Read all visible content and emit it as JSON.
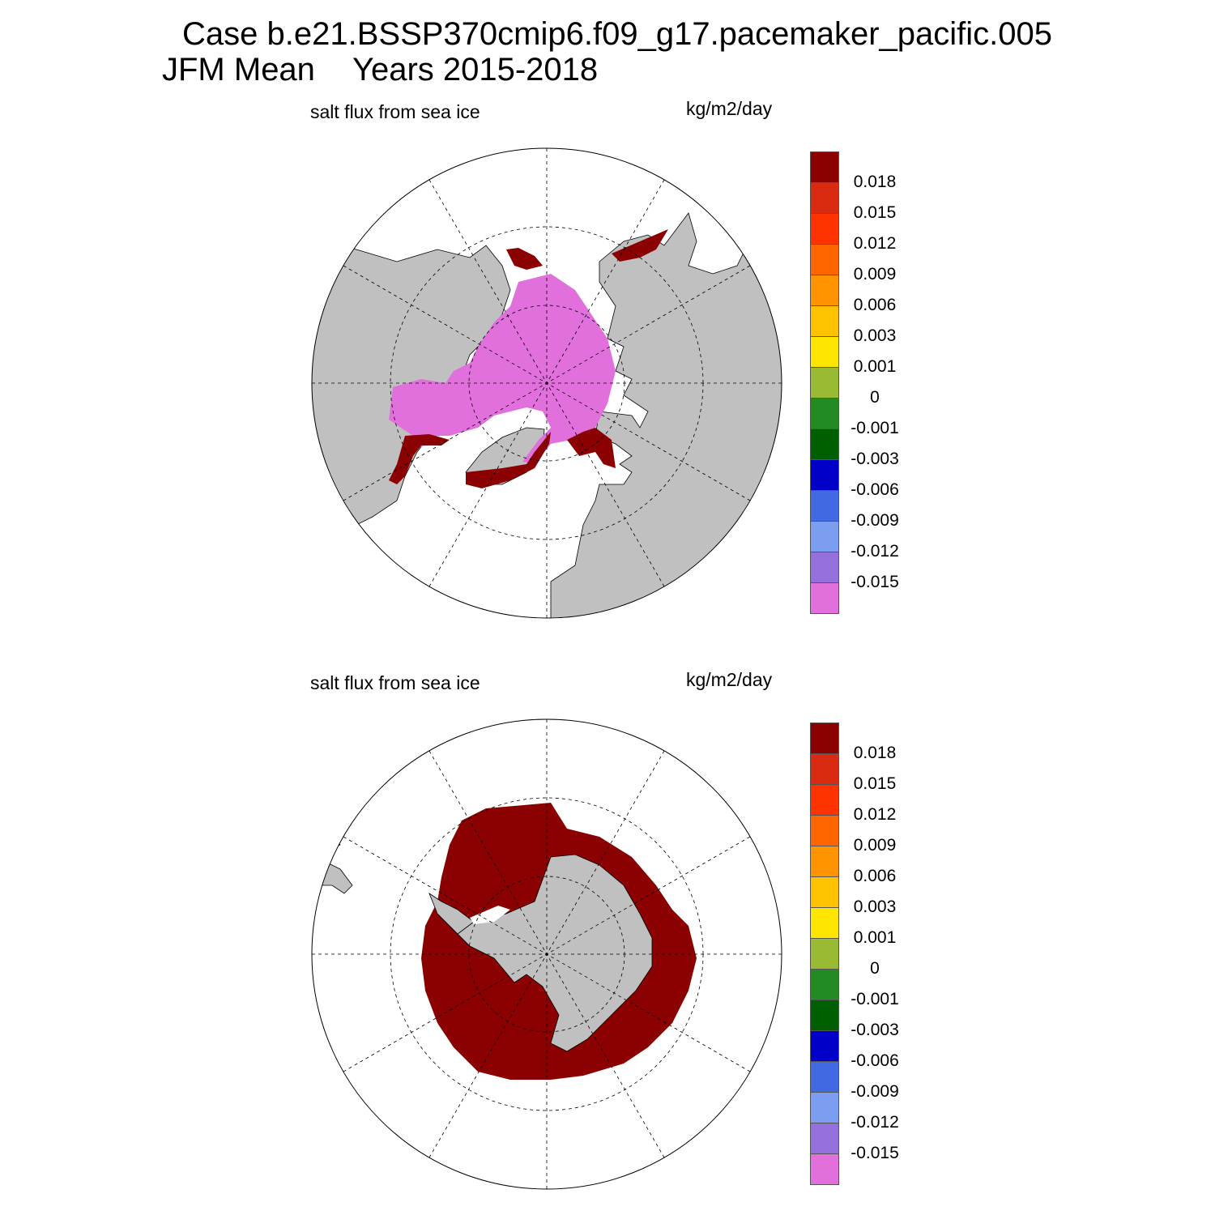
{
  "title": {
    "line1": "Case b.e21.BSSP370cmip6.f09_g17.pacemaker_pacific.005",
    "season": "JFM Mean",
    "years": "Years 2015-2018"
  },
  "panels": [
    {
      "id": "north",
      "variable_label": "salt flux from sea ice",
      "units": "kg/m2/day",
      "hemisphere": "north"
    },
    {
      "id": "south",
      "variable_label": "salt flux from sea ice",
      "units": "kg/m2/day",
      "hemisphere": "south"
    }
  ],
  "colorbar": {
    "labels": [
      "0.018",
      "0.015",
      "0.012",
      "0.009",
      "0.006",
      "0.003",
      "0.001",
      "0",
      "-0.001",
      "-0.003",
      "-0.006",
      "-0.009",
      "-0.012",
      "-0.015"
    ],
    "colors": [
      "#8b0000",
      "#d92b12",
      "#ff3300",
      "#ff6600",
      "#ff9400",
      "#ffc200",
      "#ffe600",
      "#99bb33",
      "#228b22",
      "#005f00",
      "#0000c8",
      "#4169e1",
      "#7b9ef0",
      "#9370db",
      "#e270dc"
    ]
  },
  "map_colors": {
    "land": "#c0c0c0",
    "ocean": "#ffffff",
    "grid": "#000000"
  }
}
